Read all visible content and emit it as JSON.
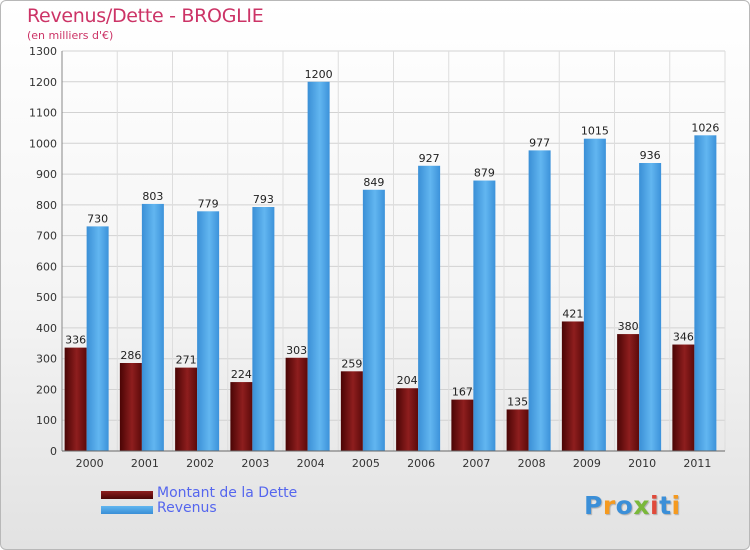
{
  "chart_data": {
    "type": "bar",
    "title": "Revenus/Dette - BROGLIE",
    "subtitle": "(en milliers d'€)",
    "categories": [
      "2000",
      "2001",
      "2002",
      "2003",
      "2004",
      "2005",
      "2006",
      "2007",
      "2008",
      "2009",
      "2010",
      "2011"
    ],
    "series": [
      {
        "name": "Montant de la Dette",
        "color": "#7a1010",
        "values": [
          336,
          286,
          271,
          224,
          303,
          259,
          204,
          167,
          135,
          421,
          380,
          346
        ]
      },
      {
        "name": "Revenus",
        "color": "#4da3e6",
        "values": [
          730,
          803,
          779,
          793,
          1200,
          849,
          927,
          879,
          977,
          1015,
          936,
          1026
        ]
      }
    ],
    "ylim": [
      0,
      1300
    ],
    "yticks": [
      0,
      100,
      200,
      300,
      400,
      500,
      600,
      700,
      800,
      900,
      1000,
      1100,
      1200,
      1300
    ],
    "grid": true,
    "legend": "bottom-left"
  },
  "branding": {
    "logo_letters": [
      "P",
      "r",
      "o",
      "x",
      "i",
      "t",
      "i"
    ],
    "logo_colors": [
      "#3b8fd8",
      "#f59a1f",
      "#3b8fd8",
      "#7ab83a",
      "#e04a3a",
      "#3b8fd8",
      "#f59a1f"
    ]
  }
}
